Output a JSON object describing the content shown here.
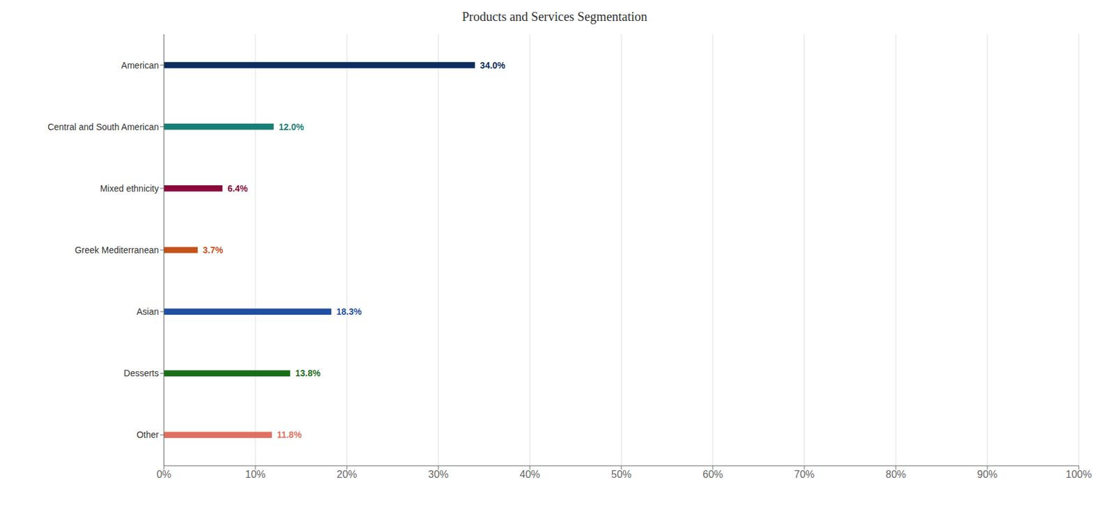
{
  "chart_data": {
    "type": "bar",
    "orientation": "horizontal",
    "title": "Products and Services Segmentation",
    "categories": [
      "American",
      "Central and South American",
      "Mixed ethnicity",
      "Greek Mediterranean",
      "Asian",
      "Desserts",
      "Other"
    ],
    "values": [
      34.0,
      12.0,
      6.4,
      3.7,
      18.3,
      13.8,
      11.8
    ],
    "value_labels": [
      "34.0%",
      "12.0%",
      "6.4%",
      "3.7%",
      "18.3%",
      "13.8%",
      "11.8%"
    ],
    "colors": [
      "#0d2d5e",
      "#1a7f74",
      "#8b0a3c",
      "#c4521a",
      "#1e4fa0",
      "#1a6e1a",
      "#e07060"
    ],
    "xlim": [
      0,
      100
    ],
    "xticks": [
      {
        "value": 0,
        "label": "0%"
      },
      {
        "value": 10,
        "label": "10%"
      },
      {
        "value": 20,
        "label": "20%"
      },
      {
        "value": 30,
        "label": "30%"
      },
      {
        "value": 40,
        "label": "40%"
      },
      {
        "value": 50,
        "label": "50%"
      },
      {
        "value": 60,
        "label": "60%"
      },
      {
        "value": 70,
        "label": "70%"
      },
      {
        "value": 80,
        "label": "80%"
      },
      {
        "value": 90,
        "label": "90%"
      },
      {
        "value": 100,
        "label": "100%"
      }
    ],
    "grid": true,
    "data_labels": true
  }
}
